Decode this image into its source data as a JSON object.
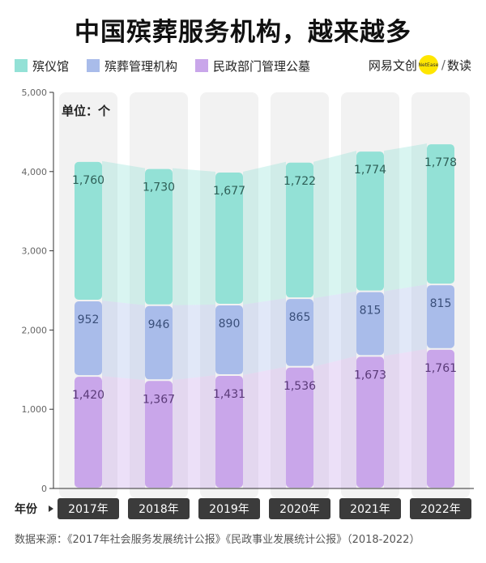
{
  "title": "中国殡葬服务机构，越来越多",
  "legend": [
    {
      "label": "殡仪馆",
      "color": "#93e1d6"
    },
    {
      "label": "殡葬管理机构",
      "color": "#a9bcea"
    },
    {
      "label": "民政部门管理公墓",
      "color": "#c9a6ea"
    }
  ],
  "brand": {
    "name": "网易文创",
    "dot_text": "NetEase",
    "slash": "/",
    "sub": "数读"
  },
  "unit_label": "单位：个",
  "x_axis_label": "年份",
  "source": "数据来源：《2017年社会服务发展统计公报》《民政事业发展统计公报》（2018-2022）",
  "chart_data": {
    "type": "bar",
    "stacked": true,
    "categories": [
      "2017年",
      "2018年",
      "2019年",
      "2020年",
      "2021年",
      "2022年"
    ],
    "series": [
      {
        "name": "民政部门管理公墓",
        "values": [
          1420,
          1367,
          1431,
          1536,
          1673,
          1761
        ],
        "color": "#c9a6ea"
      },
      {
        "name": "殡葬管理机构",
        "values": [
          952,
          946,
          890,
          865,
          815,
          815
        ],
        "color": "#a9bcea"
      },
      {
        "name": "殡仪馆",
        "values": [
          1760,
          1730,
          1677,
          1722,
          1774,
          1778
        ],
        "color": "#93e1d6"
      }
    ],
    "value_labels": [
      [
        "1,420",
        "1,367",
        "1,431",
        "1,536",
        "1,673",
        "1,761"
      ],
      [
        "952",
        "946",
        "890",
        "865",
        "815",
        "815"
      ],
      [
        "1,760",
        "1,730",
        "1,677",
        "1,722",
        "1,774",
        "1,778"
      ]
    ],
    "ylim": [
      0,
      5000
    ],
    "yticks": [
      0,
      1000,
      2000,
      3000,
      4000,
      5000
    ],
    "ytick_labels": [
      "0",
      "1,000",
      "2,000",
      "3,000",
      "4,000",
      "5,000"
    ],
    "grid": false
  }
}
